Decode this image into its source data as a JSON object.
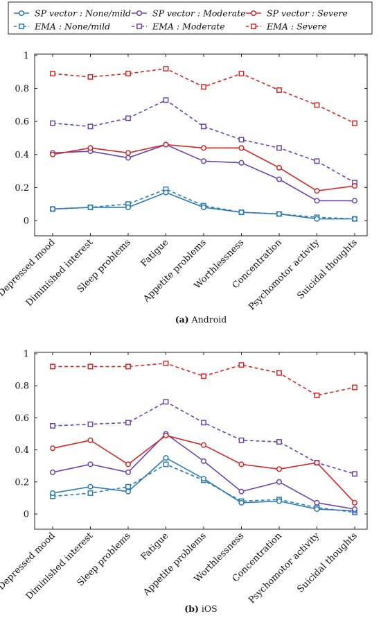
{
  "legend": {
    "entries": [
      {
        "label": "SP vector : None/mild",
        "color": "#2a7ab8",
        "dashed": false
      },
      {
        "label": "SP vector : Moderate",
        "color": "#6a44b0",
        "dashed": false
      },
      {
        "label": "SP vector : Severe",
        "color": "#d62728",
        "dashed": false
      },
      {
        "label": "EMA : None/mild",
        "color": "#2a7ab8",
        "dashed": true
      },
      {
        "label": "EMA : Moderate",
        "color": "#6a44b0",
        "dashed": true
      },
      {
        "label": "EMA : Severe",
        "color": "#d62728",
        "dashed": true
      }
    ]
  },
  "chart_data": [
    {
      "type": "line",
      "caption_tag": "(a)",
      "caption_text": "Android",
      "categories": [
        "Depressed mood",
        "Diminished interest",
        "Sleep problems",
        "Fatigue",
        "Appetite problems",
        "Worthlessness",
        "Concentration",
        "Psychomotor activity",
        "Suicidal thoughts"
      ],
      "ylim": [
        0,
        1
      ],
      "yticks": [
        "0",
        "0.2",
        "0.4",
        "0.6",
        "0.8",
        "1"
      ],
      "grid": false,
      "series": [
        {
          "name": "SP vector : None/mild",
          "color": "#2a7ab8",
          "dashed": false,
          "marker": "circle",
          "values": [
            0.07,
            0.08,
            0.08,
            0.17,
            0.08,
            0.05,
            0.04,
            0.01,
            0.01
          ]
        },
        {
          "name": "SP vector : Moderate",
          "color": "#6a44b0",
          "dashed": false,
          "marker": "circle",
          "values": [
            0.41,
            0.42,
            0.38,
            0.46,
            0.36,
            0.35,
            0.25,
            0.12,
            0.12
          ]
        },
        {
          "name": "SP vector : Severe",
          "color": "#d62728",
          "dashed": false,
          "marker": "circle",
          "values": [
            0.4,
            0.44,
            0.41,
            0.46,
            0.44,
            0.44,
            0.32,
            0.18,
            0.21
          ]
        },
        {
          "name": "EMA : None/mild",
          "color": "#2a7ab8",
          "dashed": true,
          "marker": "square",
          "values": [
            0.07,
            0.08,
            0.1,
            0.19,
            0.09,
            0.05,
            0.04,
            0.02,
            0.01
          ]
        },
        {
          "name": "EMA : Moderate",
          "color": "#6a44b0",
          "dashed": true,
          "marker": "square",
          "values": [
            0.59,
            0.57,
            0.62,
            0.73,
            0.57,
            0.49,
            0.44,
            0.36,
            0.23
          ]
        },
        {
          "name": "EMA : Severe",
          "color": "#d62728",
          "dashed": true,
          "marker": "square",
          "values": [
            0.89,
            0.87,
            0.89,
            0.92,
            0.81,
            0.89,
            0.79,
            0.7,
            0.59
          ]
        }
      ]
    },
    {
      "type": "line",
      "caption_tag": "(b)",
      "caption_text": "iOS",
      "categories": [
        "Depressed mood",
        "Diminished interest",
        "Sleep problems",
        "Fatigue",
        "Appetite problems",
        "Worthlessness",
        "Concentration",
        "Psychomotor activity",
        "Suicidal thoughts"
      ],
      "ylim": [
        0,
        1
      ],
      "yticks": [
        "0",
        "0.2",
        "0.4",
        "0.6",
        "0.8",
        "1"
      ],
      "grid": false,
      "series": [
        {
          "name": "SP vector : None/mild",
          "color": "#2a7ab8",
          "dashed": false,
          "marker": "circle",
          "values": [
            0.13,
            0.17,
            0.14,
            0.35,
            0.22,
            0.07,
            0.08,
            0.03,
            0.02
          ]
        },
        {
          "name": "SP vector : Moderate",
          "color": "#6a44b0",
          "dashed": false,
          "marker": "circle",
          "values": [
            0.26,
            0.31,
            0.26,
            0.5,
            0.33,
            0.14,
            0.2,
            0.07,
            0.03
          ]
        },
        {
          "name": "SP vector : Severe",
          "color": "#d62728",
          "dashed": false,
          "marker": "circle",
          "values": [
            0.41,
            0.46,
            0.31,
            0.49,
            0.43,
            0.31,
            0.28,
            0.32,
            0.07
          ]
        },
        {
          "name": "EMA : None/mild",
          "color": "#2a7ab8",
          "dashed": true,
          "marker": "square",
          "values": [
            0.11,
            0.13,
            0.17,
            0.31,
            0.21,
            0.08,
            0.09,
            0.04,
            0.01
          ]
        },
        {
          "name": "EMA : Moderate",
          "color": "#6a44b0",
          "dashed": true,
          "marker": "square",
          "values": [
            0.55,
            0.56,
            0.57,
            0.7,
            0.57,
            0.46,
            0.45,
            0.32,
            0.25
          ]
        },
        {
          "name": "EMA : Severe",
          "color": "#d62728",
          "dashed": true,
          "marker": "square",
          "values": [
            0.92,
            0.92,
            0.92,
            0.94,
            0.86,
            0.93,
            0.88,
            0.74,
            0.79
          ]
        }
      ]
    }
  ]
}
